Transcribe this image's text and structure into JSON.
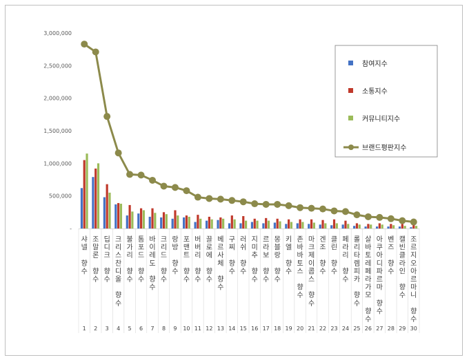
{
  "chart_data": {
    "type": "bar",
    "title": "",
    "xlabel": "",
    "ylabel": "",
    "ylim": [
      0,
      3000000
    ],
    "yticks": [
      0,
      500000,
      1000000,
      1500000,
      2000000,
      2500000,
      3000000
    ],
    "ytick_labels": [
      "-",
      "500,000",
      "1,000,000",
      "1,500,000",
      "2,000,000",
      "2,500,000",
      "3,000,000"
    ],
    "grid": false,
    "legend_position": "top-right",
    "indices": [
      "1",
      "2",
      "3",
      "4",
      "5",
      "6",
      "7",
      "8",
      "9",
      "10",
      "11",
      "12",
      "13",
      "14",
      "15",
      "16",
      "17",
      "18",
      "19",
      "20",
      "21",
      "22",
      "23",
      "24",
      "25",
      "26",
      "27",
      "28",
      "29",
      "30"
    ],
    "categories": [
      "샤넬 향수",
      "조말론 향수",
      "딥디크 향수",
      "크리스찬디올 향수",
      "불가리 향수",
      "톰포드 향수",
      "바이레도 향수",
      "크리드 향수",
      "랑방 향수",
      "포맨트 향수",
      "버버리 향수",
      "끌로에 향수",
      "베르사체 향수",
      "구찌 향수",
      "러쉬 향수",
      "지미추 향수",
      "르라보 향수",
      "몽블랑 향수",
      "키엘 향수",
      "존바바토스 향수",
      "마크제이콥스 향수",
      "겐조 향수",
      "클린 향수",
      "페라리 향수",
      "롤리타렘피카 향수",
      "살바토레페라가모 향수",
      "아쿠아디파르마 향수",
      "벤즈 향수",
      "캘빈클라인 향수",
      "조르지오아르마니 향수"
    ],
    "series": [
      {
        "name": "참여지수",
        "type": "bar",
        "color": "#4472c4",
        "values": [
          620000,
          790000,
          480000,
          370000,
          200000,
          230000,
          180000,
          170000,
          150000,
          170000,
          100000,
          120000,
          130000,
          80000,
          80000,
          100000,
          80000,
          90000,
          70000,
          80000,
          70000,
          60000,
          50000,
          60000,
          40000,
          30000,
          30000,
          30000,
          30000,
          20000
        ]
      },
      {
        "name": "소통지수",
        "type": "bar",
        "color": "#c0392b",
        "values": [
          1050000,
          920000,
          680000,
          390000,
          360000,
          310000,
          310000,
          250000,
          280000,
          200000,
          210000,
          180000,
          170000,
          200000,
          190000,
          150000,
          160000,
          150000,
          140000,
          140000,
          140000,
          130000,
          140000,
          120000,
          80000,
          70000,
          80000,
          70000,
          70000,
          60000
        ]
      },
      {
        "name": "커뮤니티지수",
        "type": "bar",
        "color": "#9bbb59",
        "values": [
          1150000,
          1000000,
          550000,
          380000,
          260000,
          280000,
          240000,
          220000,
          200000,
          180000,
          150000,
          140000,
          150000,
          140000,
          120000,
          120000,
          120000,
          110000,
          100000,
          100000,
          90000,
          80000,
          80000,
          70000,
          60000,
          60000,
          60000,
          50000,
          40000,
          40000
        ]
      },
      {
        "name": "브랜드평판지수",
        "type": "line",
        "color": "#8c8a4b",
        "values": [
          2830000,
          2710000,
          1720000,
          1160000,
          830000,
          820000,
          740000,
          650000,
          630000,
          580000,
          480000,
          460000,
          450000,
          430000,
          410000,
          380000,
          370000,
          370000,
          350000,
          320000,
          310000,
          300000,
          270000,
          260000,
          210000,
          180000,
          170000,
          150000,
          120000,
          100000
        ]
      }
    ]
  }
}
